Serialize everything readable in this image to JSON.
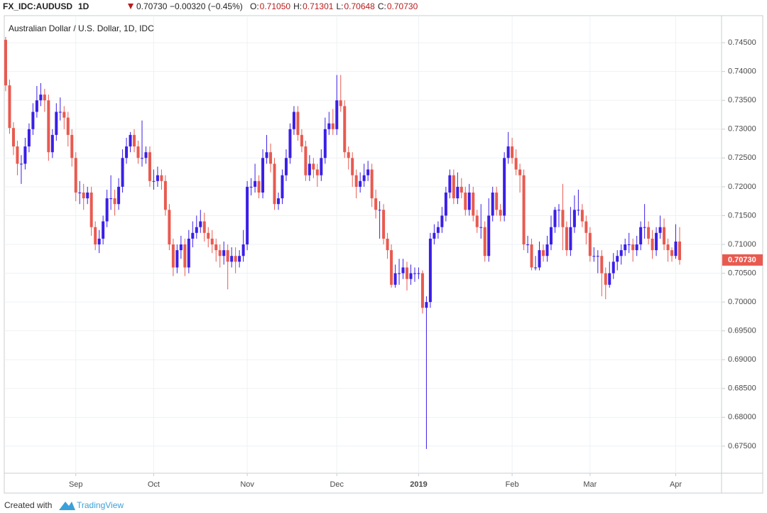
{
  "header": {
    "symbol": "FX_IDC:AUDUSD",
    "interval": "1D",
    "last": "0.70730",
    "change": "−0.00320 (−0.45%)",
    "ohlc": [
      {
        "label": "O:",
        "value": "0.71050"
      },
      {
        "label": "H:",
        "value": "0.71301"
      },
      {
        "label": "L:",
        "value": "0.70648"
      },
      {
        "label": "C:",
        "value": "0.70730"
      }
    ]
  },
  "footer": {
    "prefix": "Created with",
    "brand": "TradingView"
  },
  "chart_data": {
    "type": "candlestick",
    "title": "Australian Dollar / U.S. Dollar, 1D, IDC",
    "up_color": "#3a1fe6",
    "down_color": "#e85a50",
    "grid": true,
    "ylim": [
      0.6703,
      0.7497
    ],
    "yticks": [
      {
        "value": 0.675,
        "label": "0.67500"
      },
      {
        "value": 0.68,
        "label": "0.68000"
      },
      {
        "value": 0.685,
        "label": "0.68500"
      },
      {
        "value": 0.69,
        "label": "0.69000"
      },
      {
        "value": 0.695,
        "label": "0.69500"
      },
      {
        "value": 0.7,
        "label": "0.70000"
      },
      {
        "value": 0.705,
        "label": "0.70500"
      },
      {
        "value": 0.71,
        "label": "0.71000"
      },
      {
        "value": 0.715,
        "label": "0.71500"
      },
      {
        "value": 0.72,
        "label": "0.72000"
      },
      {
        "value": 0.725,
        "label": "0.72500"
      },
      {
        "value": 0.73,
        "label": "0.73000"
      },
      {
        "value": 0.735,
        "label": "0.73500"
      },
      {
        "value": 0.74,
        "label": "0.74000"
      },
      {
        "value": 0.745,
        "label": "0.74500"
      }
    ],
    "categories": [
      null,
      null,
      null,
      null,
      null,
      null,
      null,
      null,
      null,
      null,
      null,
      null,
      null,
      null,
      null,
      null,
      null,
      null,
      "Sep",
      null,
      null,
      null,
      null,
      null,
      null,
      null,
      null,
      null,
      null,
      null,
      null,
      null,
      null,
      null,
      null,
      null,
      null,
      null,
      "Oct",
      null,
      null,
      null,
      null,
      null,
      null,
      null,
      null,
      null,
      null,
      null,
      null,
      null,
      null,
      null,
      null,
      null,
      null,
      null,
      null,
      null,
      null,
      null,
      "Nov",
      null,
      null,
      null,
      null,
      null,
      null,
      null,
      null,
      null,
      null,
      null,
      null,
      null,
      null,
      null,
      null,
      null,
      null,
      null,
      null,
      null,
      null,
      "Dec",
      null,
      null,
      null,
      null,
      null,
      null,
      null,
      null,
      null,
      null,
      null,
      null,
      null,
      null,
      null,
      null,
      null,
      null,
      null,
      null,
      "2019",
      null,
      null,
      null,
      null,
      null,
      null,
      null,
      null,
      null,
      null,
      null,
      null,
      null,
      null,
      null,
      null,
      null,
      null,
      null,
      null,
      null,
      null,
      null,
      "Feb",
      null,
      null,
      null,
      null,
      null,
      null,
      null,
      null,
      null,
      null,
      null,
      null,
      null,
      null,
      null,
      null,
      null,
      null,
      null,
      "Mar",
      null,
      null,
      null,
      null,
      null,
      null,
      null,
      null,
      null,
      null,
      null,
      null,
      null,
      null,
      null,
      null,
      null,
      null,
      null,
      null,
      null,
      "Apr",
      null
    ],
    "open": [
      0.7455,
      0.7376,
      0.7302,
      0.727,
      0.724,
      0.724,
      0.727,
      0.73,
      0.733,
      0.735,
      0.736,
      0.735,
      0.726,
      0.729,
      0.733,
      0.733,
      0.732,
      0.729,
      0.725,
      0.719,
      0.719,
      0.718,
      0.719,
      0.713,
      0.71,
      0.711,
      0.714,
      0.718,
      0.718,
      0.717,
      0.72,
      0.725,
      0.727,
      0.729,
      0.727,
      0.725,
      0.725,
      0.726,
      0.721,
      0.721,
      0.722,
      0.721,
      0.716,
      0.71,
      0.706,
      0.709,
      0.71,
      0.706,
      0.711,
      0.712,
      0.713,
      0.714,
      0.712,
      0.711,
      0.71,
      0.709,
      0.708,
      0.709,
      0.707,
      0.708,
      0.707,
      0.708,
      0.71,
      0.72,
      0.72,
      0.721,
      0.719,
      0.725,
      0.726,
      0.724,
      0.717,
      0.718,
      0.722,
      0.725,
      0.73,
      0.733,
      0.729,
      0.727,
      0.722,
      0.724,
      0.723,
      0.722,
      0.725,
      0.73,
      0.731,
      0.73,
      0.735,
      0.734,
      0.726,
      0.725,
      0.722,
      0.72,
      0.721,
      0.722,
      0.723,
      0.718,
      0.716,
      0.716,
      0.711,
      0.709,
      0.703,
      0.705,
      0.705,
      0.706,
      0.704,
      0.705,
      0.705,
      0.705,
      0.699,
      0.7,
      0.711,
      0.712,
      0.713,
      0.715,
      0.719,
      0.722,
      0.718,
      0.72,
      0.719,
      0.716,
      0.719,
      0.715,
      0.713,
      0.713,
      0.708,
      0.715,
      0.719,
      0.716,
      0.715,
      0.725,
      0.727,
      0.725,
      0.723,
      0.722,
      0.71,
      0.71,
      0.706,
      0.706,
      0.709,
      0.708,
      0.71,
      0.713,
      0.716,
      0.716,
      0.713,
      0.709,
      0.713,
      0.716,
      0.716,
      0.714,
      0.712,
      0.708,
      0.708,
      0.708,
      0.705,
      0.703,
      0.705,
      0.707,
      0.708,
      0.709,
      0.71,
      0.71,
      0.709,
      0.71,
      0.713,
      0.713,
      0.711,
      0.709,
      0.712,
      0.713,
      0.71,
      0.709,
      0.708,
      0.7105
    ],
    "high": [
      0.746,
      0.7386,
      0.7312,
      0.728,
      0.7255,
      0.7285,
      0.731,
      0.7345,
      0.7375,
      0.738,
      0.737,
      0.736,
      0.73,
      0.7345,
      0.7355,
      0.734,
      0.733,
      0.73,
      0.726,
      0.721,
      0.7205,
      0.72,
      0.72,
      0.714,
      0.7125,
      0.715,
      0.7195,
      0.722,
      0.7195,
      0.7215,
      0.7265,
      0.7285,
      0.7295,
      0.73,
      0.728,
      0.7315,
      0.727,
      0.727,
      0.723,
      0.7235,
      0.723,
      0.722,
      0.717,
      0.711,
      0.71,
      0.7115,
      0.711,
      0.7125,
      0.714,
      0.715,
      0.716,
      0.7155,
      0.713,
      0.7125,
      0.711,
      0.71,
      0.7105,
      0.71,
      0.7095,
      0.7095,
      0.709,
      0.7125,
      0.721,
      0.7215,
      0.724,
      0.722,
      0.7265,
      0.729,
      0.7275,
      0.725,
      0.719,
      0.723,
      0.7265,
      0.731,
      0.734,
      0.734,
      0.73,
      0.728,
      0.7255,
      0.725,
      0.724,
      0.7265,
      0.732,
      0.733,
      0.7335,
      0.7394,
      0.7394,
      0.735,
      0.727,
      0.726,
      0.723,
      0.7225,
      0.724,
      0.7245,
      0.724,
      0.7195,
      0.7175,
      0.717,
      0.712,
      0.71,
      0.7065,
      0.7075,
      0.7075,
      0.707,
      0.7065,
      0.706,
      0.706,
      0.7055,
      0.701,
      0.712,
      0.7135,
      0.714,
      0.7165,
      0.72,
      0.723,
      0.723,
      0.7225,
      0.7215,
      0.72,
      0.7205,
      0.72,
      0.716,
      0.717,
      0.714,
      0.718,
      0.72,
      0.72,
      0.717,
      0.726,
      0.7295,
      0.7285,
      0.7265,
      0.724,
      0.723,
      0.7115,
      0.711,
      0.708,
      0.7105,
      0.71,
      0.7115,
      0.715,
      0.7165,
      0.717,
      0.7205,
      0.714,
      0.7165,
      0.7185,
      0.7195,
      0.717,
      0.715,
      0.713,
      0.7095,
      0.709,
      0.709,
      0.706,
      0.707,
      0.7085,
      0.709,
      0.71,
      0.711,
      0.712,
      0.711,
      0.7115,
      0.714,
      0.717,
      0.714,
      0.7125,
      0.713,
      0.715,
      0.7145,
      0.711,
      0.7095,
      0.7135,
      0.71301
    ],
    "low": [
      0.7366,
      0.7292,
      0.7255,
      0.722,
      0.7205,
      0.723,
      0.726,
      0.729,
      0.732,
      0.734,
      0.733,
      0.7245,
      0.725,
      0.728,
      0.7315,
      0.73,
      0.727,
      0.7235,
      0.7175,
      0.717,
      0.716,
      0.717,
      0.7115,
      0.709,
      0.7085,
      0.71,
      0.713,
      0.716,
      0.715,
      0.716,
      0.719,
      0.724,
      0.726,
      0.726,
      0.724,
      0.7235,
      0.724,
      0.72,
      0.7195,
      0.72,
      0.7195,
      0.715,
      0.709,
      0.7045,
      0.705,
      0.7075,
      0.7045,
      0.705,
      0.7095,
      0.711,
      0.712,
      0.7105,
      0.7095,
      0.7085,
      0.707,
      0.706,
      0.7065,
      0.7022,
      0.706,
      0.705,
      0.706,
      0.707,
      0.709,
      0.7185,
      0.719,
      0.718,
      0.718,
      0.724,
      0.7225,
      0.716,
      0.716,
      0.717,
      0.721,
      0.724,
      0.729,
      0.728,
      0.726,
      0.721,
      0.721,
      0.7215,
      0.72,
      0.721,
      0.724,
      0.729,
      0.729,
      0.729,
      0.733,
      0.725,
      0.723,
      0.72,
      0.718,
      0.719,
      0.72,
      0.721,
      0.7165,
      0.7145,
      0.711,
      0.71,
      0.7075,
      0.7025,
      0.7025,
      0.703,
      0.704,
      0.702,
      0.703,
      0.7035,
      0.704,
      0.698,
      0.6745,
      0.699,
      0.71,
      0.711,
      0.712,
      0.714,
      0.718,
      0.717,
      0.717,
      0.718,
      0.715,
      0.715,
      0.714,
      0.712,
      0.711,
      0.707,
      0.707,
      0.714,
      0.715,
      0.714,
      0.714,
      0.724,
      0.724,
      0.722,
      0.719,
      0.709,
      0.7085,
      0.7055,
      0.7055,
      0.7055,
      0.707,
      0.707,
      0.709,
      0.712,
      0.713,
      0.709,
      0.708,
      0.708,
      0.712,
      0.715,
      0.713,
      0.71,
      0.707,
      0.707,
      0.705,
      0.701,
      0.7005,
      0.7025,
      0.704,
      0.7055,
      0.7065,
      0.708,
      0.7085,
      0.707,
      0.708,
      0.709,
      0.711,
      0.71,
      0.7075,
      0.708,
      0.711,
      0.709,
      0.707,
      0.707,
      0.7075,
      0.70648
    ],
    "close": [
      0.7376,
      0.7302,
      0.727,
      0.724,
      0.724,
      0.727,
      0.73,
      0.733,
      0.735,
      0.736,
      0.735,
      0.726,
      0.729,
      0.733,
      0.733,
      0.732,
      0.729,
      0.725,
      0.719,
      0.719,
      0.718,
      0.719,
      0.713,
      0.71,
      0.711,
      0.714,
      0.718,
      0.718,
      0.717,
      0.72,
      0.725,
      0.727,
      0.729,
      0.727,
      0.725,
      0.725,
      0.726,
      0.721,
      0.721,
      0.722,
      0.721,
      0.716,
      0.71,
      0.706,
      0.709,
      0.71,
      0.706,
      0.711,
      0.712,
      0.713,
      0.714,
      0.712,
      0.711,
      0.71,
      0.709,
      0.708,
      0.709,
      0.707,
      0.708,
      0.707,
      0.708,
      0.71,
      0.72,
      0.72,
      0.721,
      0.719,
      0.725,
      0.726,
      0.724,
      0.717,
      0.718,
      0.722,
      0.725,
      0.73,
      0.733,
      0.729,
      0.727,
      0.722,
      0.724,
      0.723,
      0.722,
      0.725,
      0.73,
      0.731,
      0.73,
      0.735,
      0.734,
      0.726,
      0.725,
      0.722,
      0.72,
      0.721,
      0.722,
      0.723,
      0.718,
      0.716,
      0.716,
      0.711,
      0.709,
      0.703,
      0.705,
      0.705,
      0.706,
      0.704,
      0.705,
      0.705,
      0.705,
      0.699,
      0.7,
      0.711,
      0.712,
      0.713,
      0.715,
      0.719,
      0.722,
      0.718,
      0.72,
      0.719,
      0.716,
      0.719,
      0.715,
      0.713,
      0.713,
      0.708,
      0.715,
      0.719,
      0.716,
      0.715,
      0.725,
      0.727,
      0.725,
      0.723,
      0.722,
      0.71,
      0.71,
      0.706,
      0.706,
      0.709,
      0.708,
      0.71,
      0.713,
      0.716,
      0.716,
      0.713,
      0.709,
      0.713,
      0.716,
      0.716,
      0.714,
      0.712,
      0.708,
      0.708,
      0.708,
      0.705,
      0.703,
      0.705,
      0.707,
      0.708,
      0.709,
      0.71,
      0.71,
      0.709,
      0.71,
      0.713,
      0.713,
      0.711,
      0.709,
      0.712,
      0.713,
      0.71,
      0.709,
      0.708,
      0.7105,
      0.7073
    ]
  }
}
